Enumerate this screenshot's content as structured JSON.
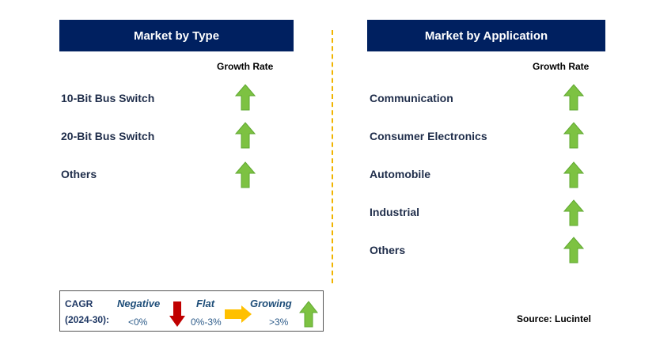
{
  "left_panel": {
    "title": "Market by Type",
    "growth_rate_label": "Growth Rate",
    "items": [
      {
        "label": "10-Bit Bus Switch",
        "trend": "growing"
      },
      {
        "label": "20-Bit Bus Switch",
        "trend": "growing"
      },
      {
        "label": "Others",
        "trend": "growing"
      }
    ]
  },
  "right_panel": {
    "title": "Market by Application",
    "growth_rate_label": "Growth Rate",
    "items": [
      {
        "label": "Communication",
        "trend": "growing"
      },
      {
        "label": "Consumer Electronics",
        "trend": "growing"
      },
      {
        "label": "Automobile",
        "trend": "growing"
      },
      {
        "label": "Industrial",
        "trend": "growing"
      },
      {
        "label": "Others",
        "trend": "growing"
      }
    ]
  },
  "legend": {
    "cagr_label": "CAGR",
    "period_label": "(2024-30):",
    "negative": {
      "label": "Negative",
      "range": "<0%",
      "icon": "down-arrow-icon",
      "color": "#c00000"
    },
    "flat": {
      "label": "Flat",
      "range": "0%-3%",
      "icon": "right-arrow-icon",
      "color": "#ffc000"
    },
    "growing": {
      "label": "Growing",
      "range": ">3%",
      "icon": "up-arrow-icon",
      "color": "#7dc242"
    }
  },
  "source": "Source: Lucintel",
  "colors": {
    "header_bg": "#002060",
    "divider": "#f0b400",
    "up_arrow": "#7dc242"
  }
}
